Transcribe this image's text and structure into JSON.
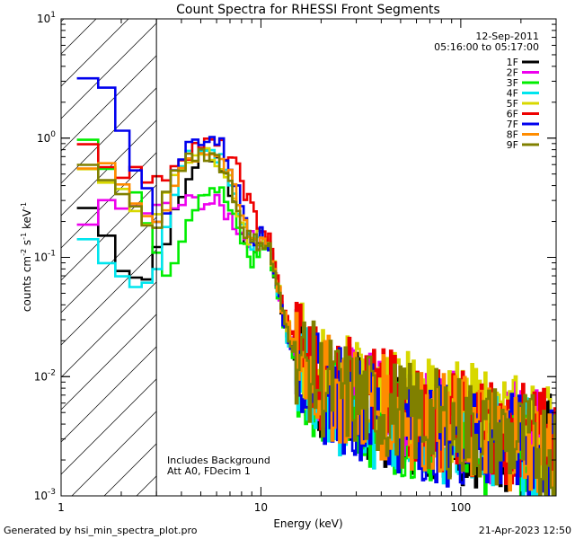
{
  "chart_data": {
    "type": "line",
    "title": "Count Spectra for RHESSI Front Segments",
    "xlabel": "Energy (keV)",
    "ylabel": "counts cm",
    "ylabel_sup1": "-2",
    "ylabel_mid": " s",
    "ylabel_sup2": "-1",
    "ylabel_end": " keV",
    "ylabel_sup3": "-1",
    "xscale": "log",
    "yscale": "log",
    "xlim": [
      1,
      300
    ],
    "ylim": [
      0.001,
      10
    ],
    "x_ticks": [
      {
        "value": 1,
        "label": "1"
      },
      {
        "value": 10,
        "label": "10"
      },
      {
        "value": 100,
        "label": "100"
      }
    ],
    "y_ticks": [
      {
        "value": 0.001,
        "base": "10",
        "exp": "-3"
      },
      {
        "value": 0.01,
        "base": "10",
        "exp": "-2"
      },
      {
        "value": 0.1,
        "base": "10",
        "exp": "-1"
      },
      {
        "value": 1,
        "base": "10",
        "exp": "0"
      },
      {
        "value": 10,
        "base": "10",
        "exp": "1"
      }
    ],
    "date": "12-Sep-2011",
    "time_range": "05:16:00 to 05:17:00",
    "annotation_lines": [
      "Includes Background",
      "Att A0, FDecim 1"
    ],
    "hatched_region": {
      "x_from": 1,
      "x_to": 3
    },
    "footer_left": "Generated by hsi_min_spectra_plot.pro",
    "footer_right": "21-Apr-2023 12:50",
    "series": [
      {
        "name": "1F",
        "color": "#000000",
        "noise": 0.08,
        "x": [
          1.2,
          1.4,
          1.6,
          1.8,
          2.0,
          2.2,
          2.5,
          2.8,
          3.0,
          3.3,
          3.6,
          4,
          4.5,
          5,
          5.5,
          6,
          6.5,
          7,
          8,
          9,
          10,
          11,
          12,
          13,
          15,
          20,
          30,
          40,
          60,
          100,
          150,
          200,
          300
        ],
        "y": [
          0.26,
          0.26,
          0.18,
          0.12,
          0.09,
          0.08,
          0.07,
          0.065,
          0.12,
          0.14,
          0.2,
          0.3,
          0.55,
          0.72,
          0.78,
          0.7,
          0.55,
          0.38,
          0.18,
          0.12,
          0.14,
          0.12,
          0.06,
          0.03,
          0.015,
          0.008,
          0.006,
          0.005,
          0.004,
          0.0035,
          0.003,
          0.0028,
          0.0025
        ]
      },
      {
        "name": "2F",
        "color": "#ee00ee",
        "noise": 0.08,
        "x": [
          1.2,
          1.4,
          1.6,
          1.8,
          2.0,
          2.2,
          2.5,
          2.8,
          3.0,
          3.3,
          3.6,
          4,
          4.5,
          5,
          5.5,
          6,
          6.5,
          7,
          8,
          9,
          10,
          11,
          12,
          13,
          15,
          20,
          30,
          40,
          60,
          100,
          150,
          200,
          300
        ],
        "y": [
          0.22,
          0.22,
          0.24,
          0.27,
          0.25,
          0.26,
          0.25,
          0.24,
          0.25,
          0.26,
          0.25,
          0.28,
          0.29,
          0.3,
          0.29,
          0.28,
          0.25,
          0.22,
          0.16,
          0.14,
          0.14,
          0.13,
          0.06,
          0.03,
          0.016,
          0.009,
          0.0065,
          0.0055,
          0.0045,
          0.004,
          0.0035,
          0.0032,
          0.0028
        ]
      },
      {
        "name": "3F",
        "color": "#00ee00",
        "noise": 0.08,
        "x": [
          1.2,
          1.4,
          1.6,
          1.8,
          2.0,
          2.2,
          2.5,
          2.8,
          3.0,
          3.3,
          3.6,
          4,
          4.5,
          5,
          5.5,
          6,
          6.5,
          7,
          8,
          9,
          10,
          11,
          12,
          13,
          15,
          20,
          30,
          40,
          60,
          100,
          150,
          200,
          300
        ],
        "y": [
          1.05,
          0.95,
          0.65,
          0.45,
          0.38,
          0.32,
          0.28,
          0.2,
          0.12,
          0.08,
          0.09,
          0.15,
          0.25,
          0.35,
          0.4,
          0.38,
          0.33,
          0.25,
          0.14,
          0.09,
          0.12,
          0.12,
          0.055,
          0.028,
          0.014,
          0.007,
          0.0055,
          0.0045,
          0.0038,
          0.0032,
          0.0028,
          0.0025,
          0.0022
        ]
      },
      {
        "name": "4F",
        "color": "#00e5ee",
        "noise": 0.08,
        "x": [
          1.2,
          1.4,
          1.6,
          1.8,
          2.0,
          2.2,
          2.5,
          2.8,
          3.0,
          3.3,
          3.6,
          4,
          4.5,
          5,
          5.5,
          6,
          6.5,
          7,
          8,
          9,
          10,
          11,
          12,
          13,
          15,
          20,
          30,
          40,
          60,
          100,
          150,
          200,
          300
        ],
        "y": [
          0.16,
          0.16,
          0.12,
          0.09,
          0.08,
          0.07,
          0.062,
          0.058,
          0.08,
          0.15,
          0.35,
          0.55,
          0.75,
          0.8,
          0.78,
          0.72,
          0.6,
          0.45,
          0.22,
          0.13,
          0.14,
          0.12,
          0.055,
          0.028,
          0.014,
          0.007,
          0.0055,
          0.0045,
          0.0038,
          0.0032,
          0.0028,
          0.0025,
          0.0022
        ]
      },
      {
        "name": "5F",
        "color": "#d8d800",
        "noise": 0.08,
        "x": [
          1.2,
          1.4,
          1.6,
          1.8,
          2.0,
          2.2,
          2.5,
          2.8,
          3.0,
          3.3,
          3.6,
          4,
          4.5,
          5,
          5.5,
          6,
          6.5,
          7,
          8,
          9,
          10,
          11,
          12,
          13,
          15,
          20,
          30,
          40,
          60,
          100,
          150,
          200,
          300
        ],
        "y": [
          0.58,
          0.6,
          0.55,
          0.45,
          0.35,
          0.28,
          0.22,
          0.2,
          0.22,
          0.3,
          0.45,
          0.6,
          0.72,
          0.8,
          0.78,
          0.7,
          0.58,
          0.42,
          0.2,
          0.12,
          0.15,
          0.13,
          0.065,
          0.033,
          0.018,
          0.01,
          0.008,
          0.007,
          0.0055,
          0.0048,
          0.0042,
          0.0038,
          0.0034
        ]
      },
      {
        "name": "6F",
        "color": "#ee0000",
        "noise": 0.08,
        "x": [
          1.2,
          1.4,
          1.6,
          1.8,
          2.0,
          2.2,
          2.5,
          2.8,
          3.0,
          3.3,
          3.6,
          4,
          4.5,
          5,
          5.5,
          6,
          6.5,
          7,
          8,
          9,
          10,
          11,
          12,
          13,
          15,
          20,
          30,
          40,
          60,
          100,
          150,
          200,
          300
        ],
        "y": [
          0.88,
          0.85,
          0.72,
          0.6,
          0.55,
          0.52,
          0.5,
          0.45,
          0.4,
          0.48,
          0.6,
          0.72,
          0.82,
          0.9,
          0.88,
          0.85,
          0.8,
          0.7,
          0.45,
          0.25,
          0.18,
          0.14,
          0.07,
          0.035,
          0.018,
          0.01,
          0.0075,
          0.0065,
          0.005,
          0.0042,
          0.0036,
          0.0032,
          0.0028
        ]
      },
      {
        "name": "7F",
        "color": "#0000ee",
        "noise": 0.08,
        "x": [
          1.2,
          1.4,
          1.6,
          1.8,
          2.0,
          2.2,
          2.5,
          2.8,
          3.0,
          3.3,
          3.6,
          4,
          4.5,
          5,
          5.5,
          6,
          6.5,
          7,
          8,
          9,
          10,
          11,
          12,
          13,
          15,
          20,
          30,
          40,
          60,
          100,
          150,
          200,
          300
        ],
        "y": [
          3.9,
          3.6,
          3.2,
          2.5,
          1.5,
          0.7,
          0.4,
          0.3,
          0.2,
          0.25,
          0.42,
          0.7,
          0.9,
          1.0,
          1.02,
          0.95,
          0.82,
          0.6,
          0.28,
          0.15,
          0.15,
          0.13,
          0.06,
          0.03,
          0.015,
          0.0075,
          0.0058,
          0.0048,
          0.0038,
          0.0032,
          0.0028,
          0.0025,
          0.0022
        ]
      },
      {
        "name": "8F",
        "color": "#ff8c00",
        "noise": 0.08,
        "x": [
          1.2,
          1.4,
          1.6,
          1.8,
          2.0,
          2.2,
          2.5,
          2.8,
          3.0,
          3.3,
          3.6,
          4,
          4.5,
          5,
          5.5,
          6,
          6.5,
          7,
          8,
          9,
          10,
          11,
          12,
          13,
          15,
          20,
          30,
          40,
          60,
          100,
          150,
          200,
          300
        ],
        "y": [
          0.62,
          0.62,
          0.55,
          0.48,
          0.4,
          0.32,
          0.26,
          0.22,
          0.2,
          0.26,
          0.4,
          0.55,
          0.7,
          0.78,
          0.8,
          0.74,
          0.62,
          0.46,
          0.22,
          0.14,
          0.15,
          0.13,
          0.065,
          0.032,
          0.016,
          0.0085,
          0.0065,
          0.0055,
          0.0045,
          0.0038,
          0.0033,
          0.003,
          0.0026
        ]
      },
      {
        "name": "9F",
        "color": "#808000",
        "noise": 0.08,
        "x": [
          1.2,
          1.4,
          1.6,
          1.8,
          2.0,
          2.2,
          2.5,
          2.8,
          3.0,
          3.3,
          3.6,
          4,
          4.5,
          5,
          5.5,
          6,
          6.5,
          7,
          8,
          9,
          10,
          11,
          12,
          13,
          15,
          20,
          30,
          40,
          60,
          100,
          150,
          200,
          300
        ],
        "y": [
          0.6,
          0.58,
          0.52,
          0.42,
          0.32,
          0.26,
          0.2,
          0.18,
          0.2,
          0.28,
          0.42,
          0.58,
          0.7,
          0.78,
          0.76,
          0.7,
          0.58,
          0.42,
          0.2,
          0.13,
          0.14,
          0.12,
          0.06,
          0.03,
          0.016,
          0.0085,
          0.0065,
          0.0055,
          0.0045,
          0.0038,
          0.0032,
          0.0028,
          0.0025
        ]
      }
    ]
  }
}
